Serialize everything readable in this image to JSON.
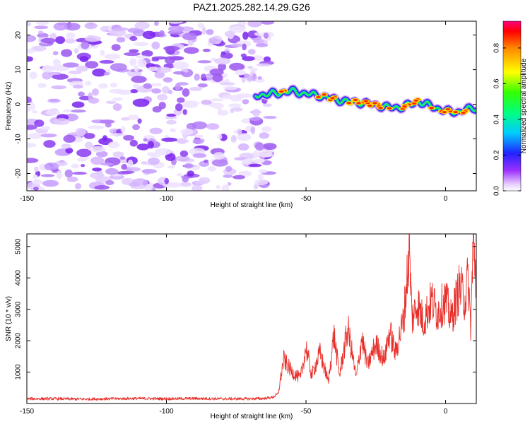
{
  "title": "PAZ1.2025.282.14.29.G26",
  "chart_data": [
    {
      "type": "heatmap",
      "xlabel": "Height of straight line (km)",
      "ylabel": "Frequency (Hz)",
      "xlim": [
        -150,
        11
      ],
      "ylim": [
        -25,
        24
      ],
      "x_ticks": [
        -150,
        -100,
        -50,
        0
      ],
      "y_ticks": [
        -20,
        -10,
        0,
        10,
        20
      ],
      "noise_region_x": [
        -150,
        -65
      ],
      "signal_track": {
        "x": [
          -68,
          -65,
          -60,
          -55,
          -50,
          -45,
          -40,
          -35,
          -30,
          -25,
          -20,
          -15,
          -10,
          -5,
          0,
          5,
          10,
          11
        ],
        "freq": [
          2.5,
          2.8,
          3.2,
          3.8,
          3.0,
          2.5,
          1.5,
          0.8,
          0.5,
          -0.2,
          -1.0,
          -0.8,
          0.8,
          -0.6,
          -2.0,
          -2.2,
          -1.0,
          -1.2
        ]
      },
      "colorbar": {
        "label": "Normalized spectral amplitude",
        "range": [
          0.0,
          0.95
        ],
        "ticks": [
          0.0,
          0.2,
          0.4,
          0.6,
          0.8
        ],
        "tick_labels": [
          "0.0",
          "0.2",
          "0.4",
          "0.6",
          "0.8"
        ]
      }
    },
    {
      "type": "line",
      "xlabel": "Height of straight line (km)",
      "ylabel": "SNR (10 * v/v)",
      "xlim": [
        -150,
        11
      ],
      "ylim": [
        0,
        5400
      ],
      "x_ticks": [
        -150,
        -100,
        -50,
        0
      ],
      "y_ticks": [
        1000,
        2000,
        3000,
        4000,
        5000
      ],
      "series": [
        {
          "name": "SNR",
          "color": "#e8302a",
          "x": [
            -150,
            -140,
            -130,
            -120,
            -110,
            -100,
            -90,
            -80,
            -70,
            -65,
            -62,
            -60,
            -58,
            -55,
            -52,
            -50,
            -48,
            -45,
            -42,
            -40,
            -38,
            -35,
            -32,
            -30,
            -28,
            -25,
            -22,
            -20,
            -18,
            -15,
            -13,
            -12,
            -10,
            -8,
            -5,
            -3,
            0,
            2,
            5,
            7,
            8,
            9,
            10,
            11
          ],
          "values": [
            150,
            150,
            140,
            150,
            160,
            150,
            160,
            150,
            150,
            160,
            200,
            300,
            1400,
            1000,
            800,
            1800,
            900,
            1600,
            700,
            2200,
            900,
            2400,
            800,
            2100,
            1200,
            1900,
            1400,
            2300,
            1600,
            2700,
            4900,
            2700,
            3200,
            2600,
            3300,
            2900,
            3300,
            2700,
            3700,
            3300,
            4000,
            2500,
            5300,
            3800
          ]
        }
      ]
    }
  ],
  "colors": {
    "line": "#e8302a",
    "noise": "#a45df0",
    "axis": "#000000"
  }
}
